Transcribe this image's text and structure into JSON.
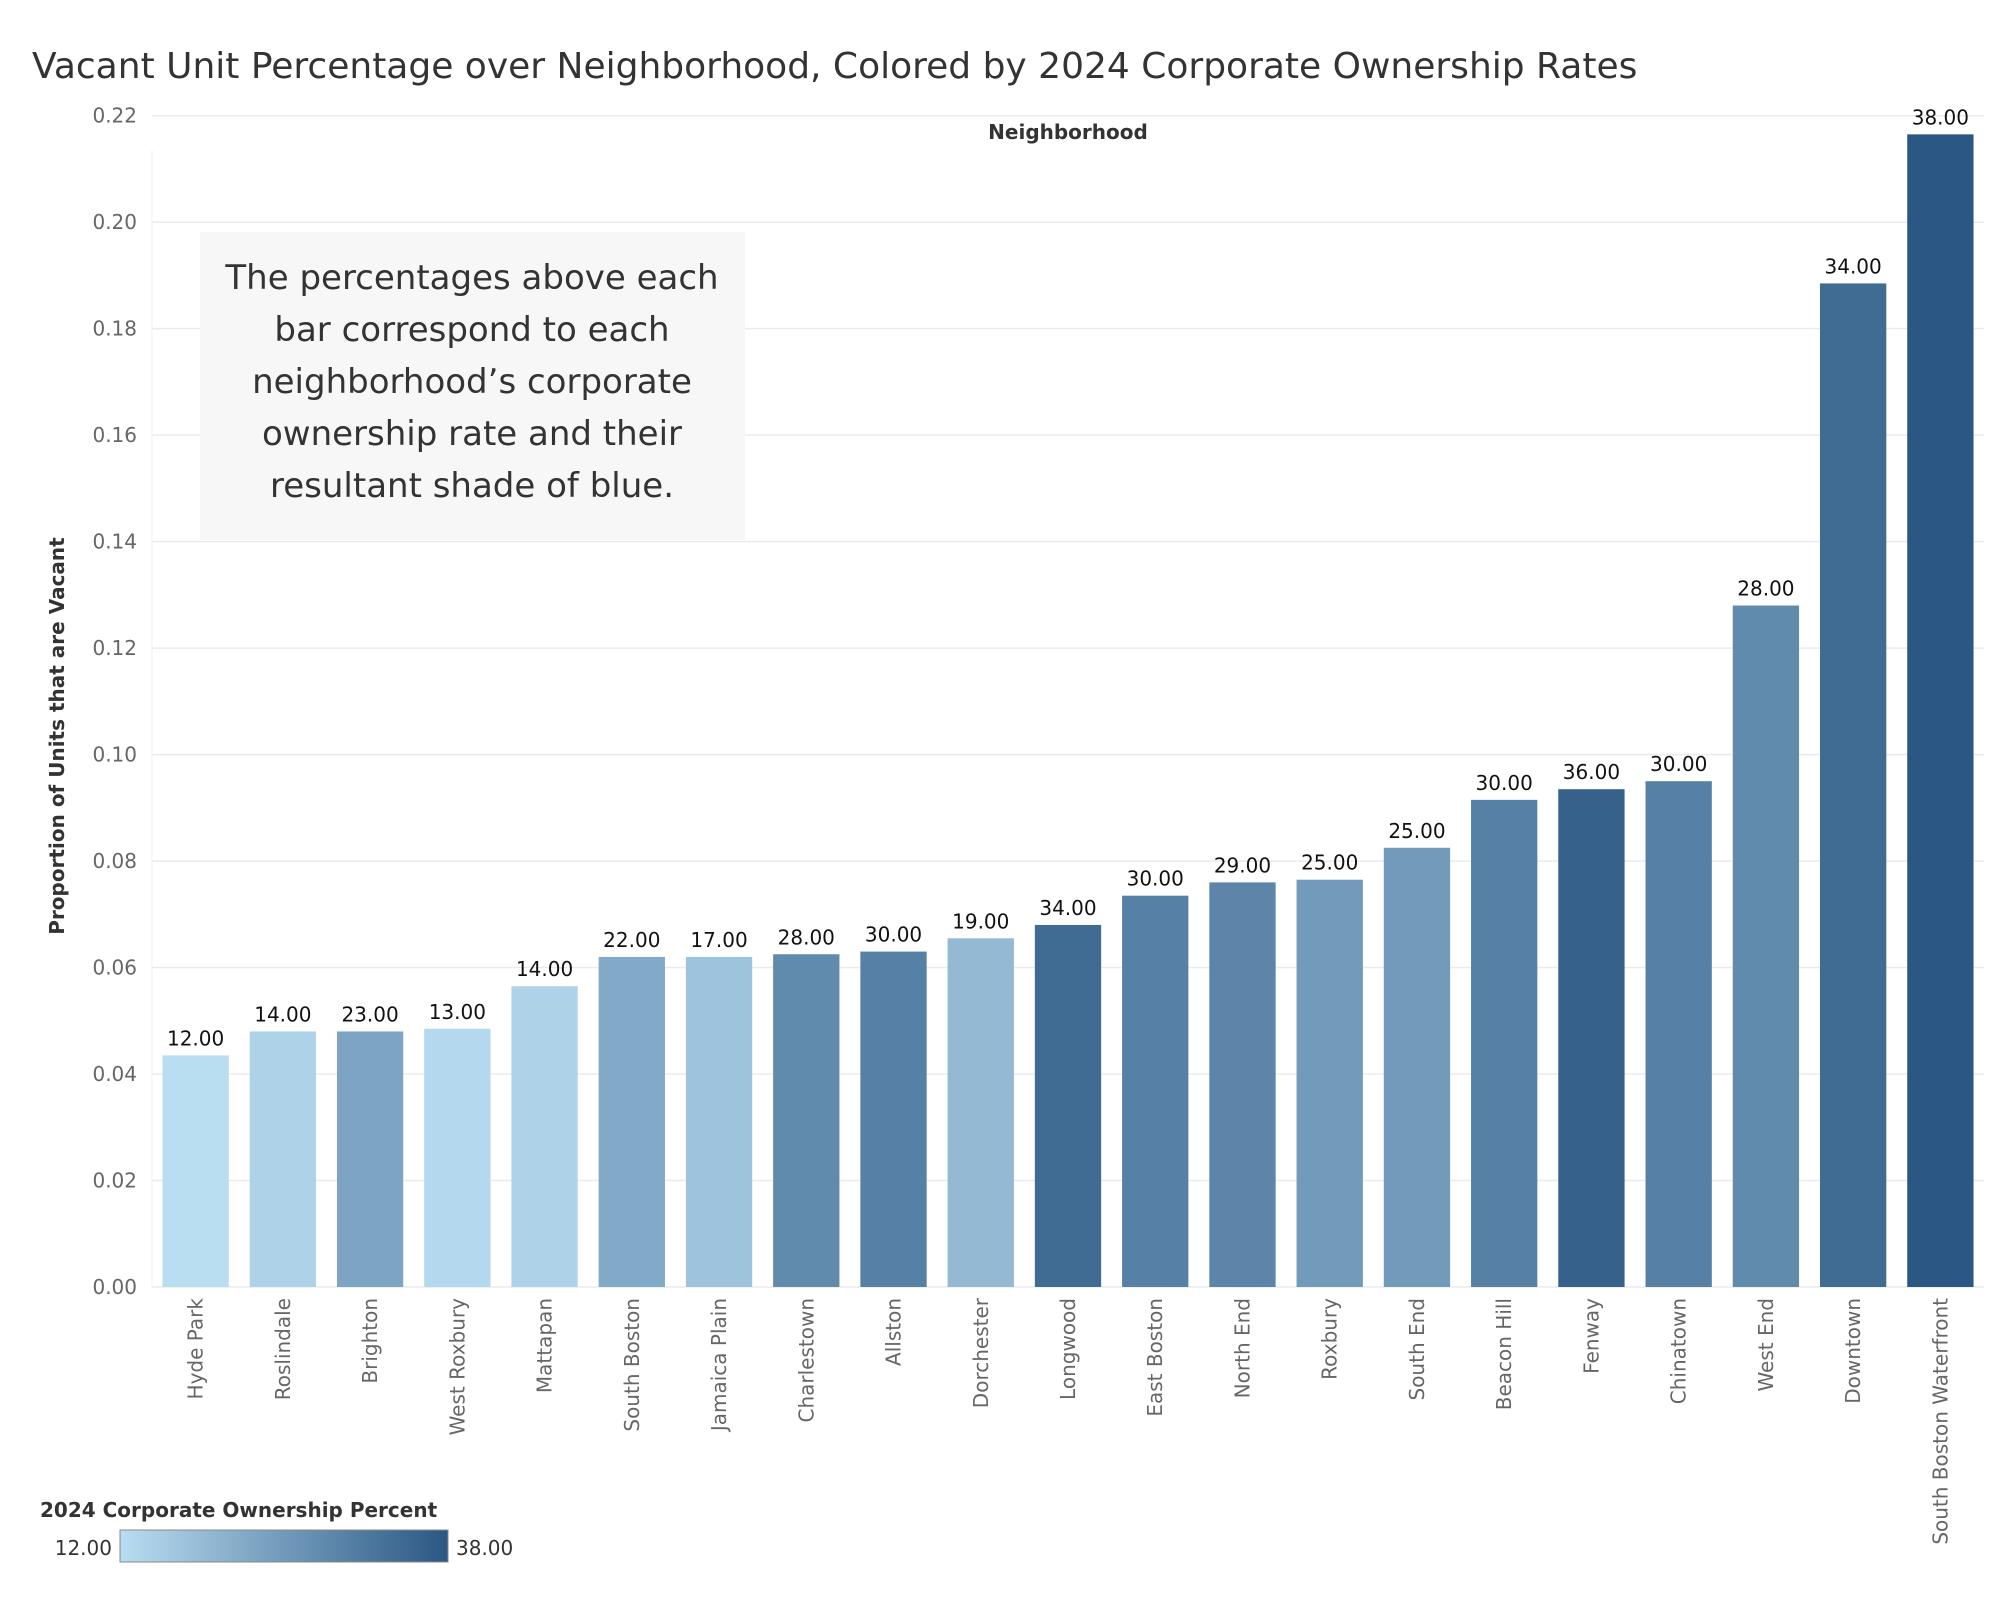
{
  "chart_data": {
    "type": "bar",
    "title": "Vacant Unit Percentage over Neighborhood, Colored by 2024 Corporate Ownership Rates",
    "column_header": "Neighborhood",
    "ylabel": "Proportion of Units that are Vacant",
    "xlabel": "",
    "ylim": [
      0,
      0.23
    ],
    "yticks": [
      "0.00",
      "0.02",
      "0.04",
      "0.06",
      "0.08",
      "0.10",
      "0.12",
      "0.14",
      "0.16",
      "0.18",
      "0.20",
      "0.22"
    ],
    "grid": true,
    "categories": [
      "Hyde Park",
      "Roslindale",
      "Brighton",
      "West Roxbury",
      "Mattapan",
      "South Boston",
      "Jamaica Plain",
      "Charlestown",
      "Allston",
      "Dorchester",
      "Longwood",
      "East Boston",
      "North End",
      "Roxbury",
      "South End",
      "Beacon Hill",
      "Fenway",
      "Chinatown",
      "West End",
      "Downtown",
      "South Boston Waterfront"
    ],
    "values": [
      0.0435,
      0.048,
      0.048,
      0.0485,
      0.0565,
      0.062,
      0.062,
      0.0625,
      0.063,
      0.0655,
      0.068,
      0.0735,
      0.076,
      0.0765,
      0.0825,
      0.0915,
      0.0935,
      0.095,
      0.128,
      0.1885,
      0.2165
    ],
    "color_values": [
      12,
      14,
      23,
      13,
      14,
      22,
      17,
      28,
      30,
      19,
      34,
      30,
      29,
      25,
      25,
      30,
      36,
      30,
      28,
      34,
      38
    ],
    "data_labels": [
      "12.00",
      "14.00",
      "23.00",
      "13.00",
      "14.00",
      "22.00",
      "17.00",
      "28.00",
      "30.00",
      "19.00",
      "34.00",
      "30.00",
      "29.00",
      "25.00",
      "25.00",
      "30.00",
      "36.00",
      "30.00",
      "28.00",
      "34.00",
      "38.00"
    ],
    "color_scale": {
      "title": "2024 Corporate Ownership Percent",
      "min": 12,
      "max": 38,
      "min_label": "12.00",
      "max_label": "38.00",
      "min_color": "#b9ddf1",
      "max_color": "#2a5783"
    },
    "annotation": {
      "lines": [
        "The percentages above each",
        "bar correspond to each",
        "neighborhood’s corporate",
        "ownership rate and their",
        "resultant shade of blue."
      ]
    }
  }
}
